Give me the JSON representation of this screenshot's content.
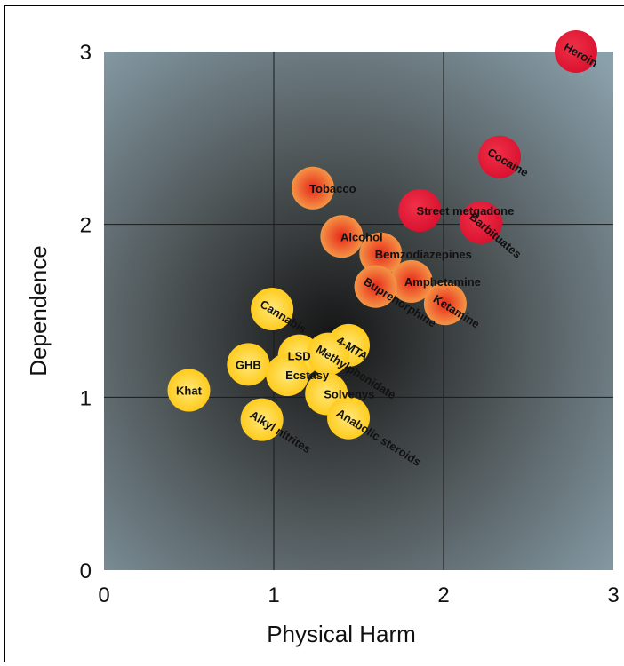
{
  "chart_data": {
    "type": "scatter",
    "xlabel": "Physical Harm",
    "ylabel": "Dependence",
    "xlim": [
      0,
      3
    ],
    "ylim": [
      0,
      3
    ],
    "xticks": [
      "0",
      "1",
      "2",
      "3"
    ],
    "yticks": [
      "0",
      "1",
      "2",
      "3"
    ],
    "grid": true,
    "background": "radial gradient dark center",
    "points": [
      {
        "name": "Heroin",
        "x": 2.78,
        "y": 3.0,
        "color": "#e8193a",
        "label_rotation": 30
      },
      {
        "name": "Cocaine",
        "x": 2.33,
        "y": 2.39,
        "color": "#e8193a",
        "label_rotation": 30
      },
      {
        "name": "Street metgadone",
        "x": 1.86,
        "y": 2.08,
        "color": "#e8193a",
        "label_rotation": 0
      },
      {
        "name": "Barbituates",
        "x": 2.22,
        "y": 2.01,
        "color": "#e8193a",
        "label_rotation": 40
      },
      {
        "name": "Tobacco",
        "x": 1.23,
        "y": 2.21,
        "color": "#f04a1e",
        "label_rotation": 0
      },
      {
        "name": "Alcohol",
        "x": 1.4,
        "y": 1.93,
        "color": "#f04a1e",
        "label_rotation": 0
      },
      {
        "name": "Bemzodiazepines",
        "x": 1.63,
        "y": 1.83,
        "color": "#f04a1e",
        "label_rotation": 0
      },
      {
        "name": "Amphetamine",
        "x": 1.81,
        "y": 1.67,
        "color": "#f04a1e",
        "label_rotation": 0
      },
      {
        "name": "Buprenorphine",
        "x": 1.6,
        "y": 1.64,
        "color": "#f04a1e",
        "label_rotation": 32
      },
      {
        "name": "Ketamine",
        "x": 2.01,
        "y": 1.54,
        "color": "#f04a1e",
        "label_rotation": 32
      },
      {
        "name": "Cannabis",
        "x": 0.99,
        "y": 1.51,
        "color": "#ffd21e",
        "label_rotation": 32
      },
      {
        "name": "4-MTA",
        "x": 1.44,
        "y": 1.3,
        "color": "#ffd21e",
        "label_rotation": 32
      },
      {
        "name": "LSD",
        "x": 1.15,
        "y": 1.24,
        "color": "#ffd21e",
        "label_rotation": 0
      },
      {
        "name": "Methylphenidate",
        "x": 1.32,
        "y": 1.25,
        "color": "#ffd21e",
        "label_rotation": 32
      },
      {
        "name": "GHB",
        "x": 0.85,
        "y": 1.19,
        "color": "#ffd21e",
        "label_rotation": 0
      },
      {
        "name": "Ecstasy",
        "x": 1.08,
        "y": 1.13,
        "color": "#ffd21e",
        "label_rotation": 0
      },
      {
        "name": "Khat",
        "x": 0.5,
        "y": 1.04,
        "color": "#ffd21e",
        "label_rotation": 0
      },
      {
        "name": "Solvenys",
        "x": 1.31,
        "y": 1.02,
        "color": "#ffd21e",
        "label_rotation": 0
      },
      {
        "name": "Alkyl nitrites",
        "x": 0.93,
        "y": 0.87,
        "color": "#ffd21e",
        "label_rotation": 32
      },
      {
        "name": "Anabolic steroids",
        "x": 1.44,
        "y": 0.88,
        "color": "#ffd21e",
        "label_rotation": 32
      }
    ]
  }
}
